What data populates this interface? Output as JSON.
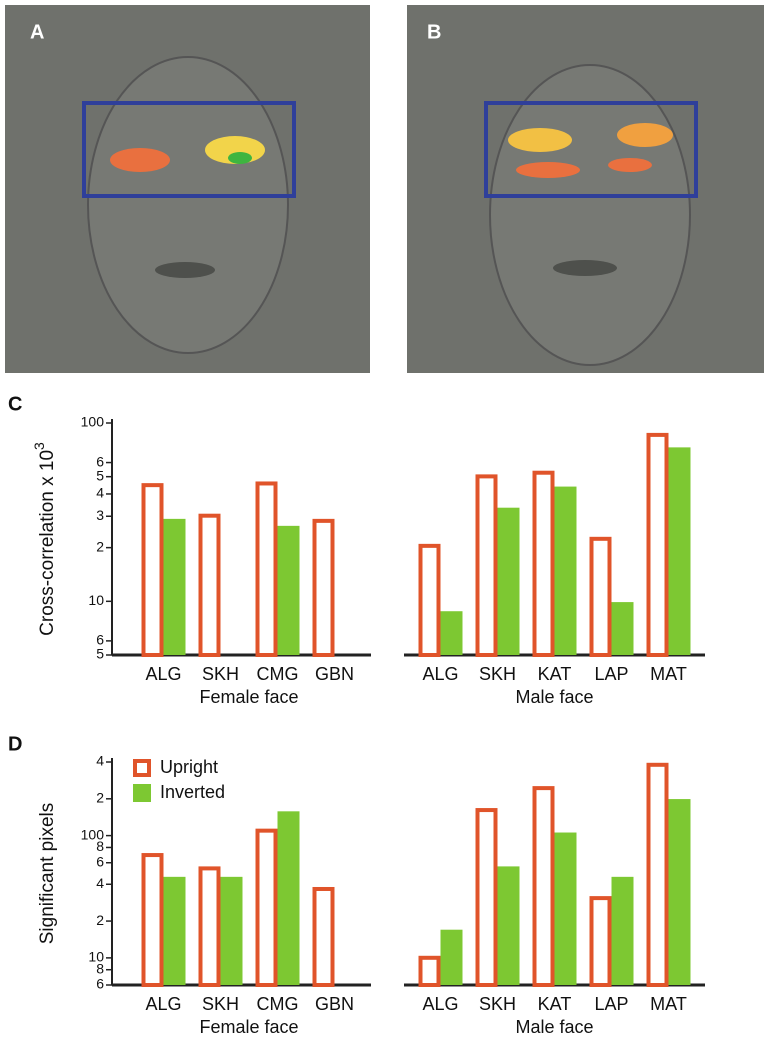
{
  "images": [
    {
      "label": "A"
    },
    {
      "label": "B"
    }
  ],
  "chart_data": [
    {
      "type": "bar",
      "panel_label": "C",
      "y_label": "Cross-correlation  x 10",
      "y_label_exponent": "3",
      "log_scale": true,
      "ylim": [
        5,
        100
      ],
      "yticks": [
        5,
        6,
        10,
        {
          "value": 20,
          "label": "2"
        },
        {
          "value": 30,
          "label": "3"
        },
        {
          "value": 40,
          "label": "4"
        },
        {
          "value": 50,
          "label": "5"
        },
        {
          "value": 60,
          "label": "6"
        },
        100
      ],
      "groups": [
        {
          "label": "Female face",
          "categories": [
            "ALG",
            "SKH",
            "CMG",
            "GBN"
          ],
          "series": [
            {
              "color": "#e0542a",
              "hollow": true,
              "values": [
                46,
                31,
                47,
                29
              ]
            },
            {
              "color": "#7dc832",
              "hollow": false,
              "values": [
                29,
                null,
                26.5,
                null
              ]
            }
          ]
        },
        {
          "label": "Male face",
          "categories": [
            "ALG",
            "SKH",
            "KAT",
            "LAP",
            "MAT"
          ],
          "series": [
            {
              "color": "#e0542a",
              "hollow": true,
              "values": [
                21,
                51.5,
                54,
                23,
                88
              ]
            },
            {
              "color": "#7dc832",
              "hollow": false,
              "values": [
                8.8,
                33.5,
                44,
                9.9,
                73
              ]
            }
          ]
        }
      ]
    },
    {
      "type": "bar",
      "panel_label": "D",
      "y_label": "Significant pixels",
      "log_scale": true,
      "ylim": [
        6,
        400
      ],
      "legend": "top-left",
      "yticks": [
        6,
        8,
        10,
        {
          "value": 20,
          "label": "2"
        },
        {
          "value": 40,
          "label": "4"
        },
        {
          "value": 60,
          "label": "6"
        },
        {
          "value": 80,
          "label": "8"
        },
        100,
        {
          "value": 200,
          "label": "2"
        },
        {
          "value": 400,
          "label": "4"
        }
      ],
      "groups": [
        {
          "label": "Female face",
          "categories": [
            "ALG",
            "SKH",
            "CMG",
            "GBN"
          ],
          "series": [
            {
              "name": "Upright",
              "color": "#e0542a",
              "hollow": true,
              "values": [
                72,
                56,
                114,
                38
              ]
            },
            {
              "name": "Inverted",
              "color": "#7dc832",
              "hollow": false,
              "values": [
                46,
                46,
                158,
                null
              ]
            }
          ]
        },
        {
          "label": "Male face",
          "categories": [
            "ALG",
            "SKH",
            "KAT",
            "LAP",
            "MAT"
          ],
          "series": [
            {
              "name": "Upright",
              "color": "#e0542a",
              "hollow": true,
              "values": [
                10.4,
                168,
                254,
                32,
                394
              ]
            },
            {
              "name": "Inverted",
              "color": "#7dc832",
              "hollow": false,
              "values": [
                17,
                56,
                106,
                46,
                199
              ]
            }
          ]
        }
      ]
    }
  ]
}
